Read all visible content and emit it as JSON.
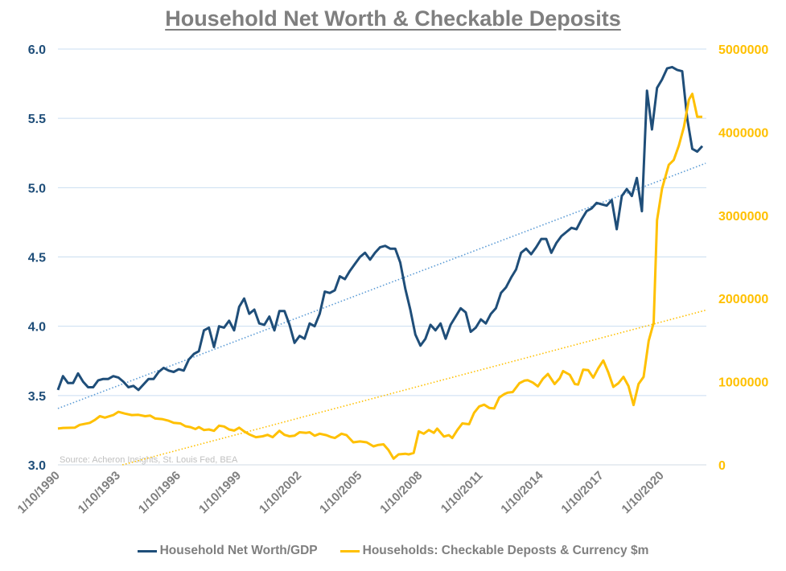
{
  "chart_data": {
    "type": "line",
    "title": "Household Net Worth & Checkable Deposits",
    "source_note": "Source: Acheron Insights, St. Louis Fed, BEA",
    "x_tick_labels": [
      "1/10/1990",
      "1/10/1993",
      "1/10/1996",
      "1/10/1999",
      "1/10/2002",
      "1/10/2005",
      "1/10/2008",
      "1/10/2011",
      "1/10/2014",
      "1/10/2017",
      "1/10/2020"
    ],
    "x_tick_dates": [
      "1990-10",
      "1993-10",
      "1996-10",
      "1999-10",
      "2002-10",
      "2005-10",
      "2008-10",
      "2011-10",
      "2014-10",
      "2017-10",
      "2020-10"
    ],
    "y_left": {
      "range": [
        3.0,
        6.0
      ],
      "ticks": [
        "3.0",
        "3.5",
        "4.0",
        "4.5",
        "5.0",
        "5.5",
        "6.0"
      ],
      "color": "#1f4e79"
    },
    "y_right": {
      "range": [
        0,
        5000000
      ],
      "ticks": [
        "0",
        "1000000",
        "2000000",
        "3000000",
        "4000000",
        "5000000"
      ],
      "color": "#ffc000"
    },
    "grid": true,
    "legend_position": "bottom",
    "series": [
      {
        "name": "Household Net Worth/GDP",
        "axis": "left",
        "color": "#1f4e79",
        "trendline": "linear",
        "trend_color": "#5b9bd5",
        "x": [
          "1990-10",
          "1991-01",
          "1991-04",
          "1991-07",
          "1991-10",
          "1992-01",
          "1992-04",
          "1992-07",
          "1992-10",
          "1993-01",
          "1993-04",
          "1993-07",
          "1993-10",
          "1994-01",
          "1994-04",
          "1994-07",
          "1994-10",
          "1995-01",
          "1995-04",
          "1995-07",
          "1995-10",
          "1996-01",
          "1996-04",
          "1996-07",
          "1996-10",
          "1997-01",
          "1997-04",
          "1997-07",
          "1997-10",
          "1998-01",
          "1998-04",
          "1998-07",
          "1998-10",
          "1999-01",
          "1999-04",
          "1999-07",
          "1999-10",
          "2000-01",
          "2000-04",
          "2000-07",
          "2000-10",
          "2001-01",
          "2001-04",
          "2001-07",
          "2001-10",
          "2002-01",
          "2002-04",
          "2002-07",
          "2002-10",
          "2003-01",
          "2003-04",
          "2003-07",
          "2003-10",
          "2004-01",
          "2004-04",
          "2004-07",
          "2004-10",
          "2005-01",
          "2005-04",
          "2005-07",
          "2005-10",
          "2006-01",
          "2006-04",
          "2006-07",
          "2006-10",
          "2007-01",
          "2007-04",
          "2007-07",
          "2007-10",
          "2008-01",
          "2008-04",
          "2008-07",
          "2008-10",
          "2009-01",
          "2009-04",
          "2009-07",
          "2009-10",
          "2010-01",
          "2010-04",
          "2010-07",
          "2010-10",
          "2011-01",
          "2011-04",
          "2011-07",
          "2011-10",
          "2012-01",
          "2012-04",
          "2012-07",
          "2012-10",
          "2013-01",
          "2013-04",
          "2013-07",
          "2013-10",
          "2014-01",
          "2014-04",
          "2014-07",
          "2014-10",
          "2015-01",
          "2015-04",
          "2015-07",
          "2015-10",
          "2016-01",
          "2016-04",
          "2016-07",
          "2016-10",
          "2017-01",
          "2017-04",
          "2017-07",
          "2017-10",
          "2018-01",
          "2018-04",
          "2018-07",
          "2018-10",
          "2019-01",
          "2019-04",
          "2019-07",
          "2019-10",
          "2020-01",
          "2020-04",
          "2020-07",
          "2020-10",
          "2021-01",
          "2021-04",
          "2021-07",
          "2021-10",
          "2022-01",
          "2022-04",
          "2022-07",
          "2022-10"
        ],
        "values": [
          3.54,
          3.64,
          3.59,
          3.59,
          3.66,
          3.6,
          3.56,
          3.56,
          3.61,
          3.62,
          3.62,
          3.64,
          3.63,
          3.6,
          3.56,
          3.57,
          3.54,
          3.58,
          3.62,
          3.62,
          3.67,
          3.7,
          3.68,
          3.67,
          3.69,
          3.68,
          3.76,
          3.8,
          3.82,
          3.97,
          3.99,
          3.85,
          4.0,
          3.99,
          4.04,
          3.97,
          4.14,
          4.2,
          4.09,
          4.12,
          4.02,
          4.01,
          4.07,
          3.97,
          4.11,
          4.11,
          4.01,
          3.88,
          3.93,
          3.91,
          4.02,
          4.0,
          4.09,
          4.25,
          4.24,
          4.26,
          4.36,
          4.34,
          4.4,
          4.45,
          4.5,
          4.53,
          4.48,
          4.53,
          4.57,
          4.58,
          4.56,
          4.56,
          4.46,
          4.27,
          4.12,
          3.94,
          3.86,
          3.91,
          4.01,
          3.97,
          4.02,
          3.91,
          4.01,
          4.07,
          4.13,
          4.1,
          3.96,
          3.99,
          4.05,
          4.02,
          4.09,
          4.13,
          4.24,
          4.28,
          4.35,
          4.41,
          4.53,
          4.56,
          4.52,
          4.57,
          4.63,
          4.63,
          4.53,
          4.6,
          4.65,
          4.68,
          4.71,
          4.7,
          4.77,
          4.83,
          4.85,
          4.89,
          4.88,
          4.87,
          4.91,
          4.7,
          4.94,
          4.99,
          4.94,
          5.07,
          4.83,
          5.7,
          5.42,
          5.72,
          5.78,
          5.86,
          5.87,
          5.85,
          5.84,
          5.5,
          5.28,
          5.26,
          5.3
        ]
      },
      {
        "name": "Households: Checkable Deposts & Currency $m",
        "axis": "right",
        "color": "#ffc000",
        "trendline": "linear",
        "trend_color": "#ffc000",
        "x": [
          "1990-10",
          "1991-01",
          "1991-08",
          "1991-11",
          "1992-05",
          "1992-08",
          "1992-11",
          "1993-02",
          "1993-07",
          "1993-10",
          "1994-02",
          "1994-06",
          "1994-10",
          "1995-02",
          "1995-05",
          "1995-08",
          "1995-12",
          "1996-04",
          "1996-07",
          "1996-11",
          "1997-02",
          "1997-05",
          "1997-08",
          "1997-10",
          "1998-01",
          "1998-04",
          "1998-07",
          "1998-10",
          "1999-01",
          "1999-04",
          "1999-07",
          "1999-10",
          "2000-01",
          "2000-04",
          "2000-08",
          "2000-12",
          "2001-03",
          "2001-06",
          "2001-10",
          "2002-01",
          "2002-04",
          "2002-07",
          "2002-10",
          "2003-02",
          "2003-04",
          "2003-07",
          "2003-10",
          "2004-02",
          "2004-05",
          "2004-07",
          "2004-11",
          "2005-02",
          "2005-06",
          "2005-10",
          "2006-02",
          "2006-06",
          "2006-09",
          "2006-12",
          "2007-03",
          "2007-06",
          "2007-09",
          "2008-01",
          "2008-03",
          "2008-06",
          "2008-09",
          "2008-12",
          "2009-03",
          "2009-06",
          "2009-08",
          "2009-12",
          "2010-03",
          "2010-05",
          "2010-08",
          "2010-11",
          "2011-03",
          "2011-06",
          "2011-09",
          "2011-12",
          "2012-03",
          "2012-06",
          "2012-09",
          "2012-12",
          "2013-02",
          "2013-05",
          "2013-09",
          "2013-12",
          "2014-02",
          "2014-05",
          "2014-08",
          "2014-11",
          "2015-02",
          "2015-06",
          "2015-09",
          "2015-11",
          "2016-03",
          "2016-06",
          "2016-08",
          "2016-11",
          "2017-02",
          "2017-05",
          "2017-08",
          "2017-11",
          "2018-02",
          "2018-05",
          "2018-08",
          "2018-11",
          "2019-02",
          "2019-05",
          "2019-08",
          "2019-11",
          "2020-02",
          "2020-05",
          "2020-07",
          "2020-10",
          "2021-02",
          "2021-05",
          "2021-08",
          "2021-11",
          "2022-02",
          "2022-04",
          "2022-07",
          "2022-10"
        ],
        "values": [
          436000,
          444000,
          447000,
          481000,
          505000,
          540000,
          585000,
          568000,
          599000,
          637000,
          616000,
          599000,
          602000,
          585000,
          592000,
          557000,
          550000,
          530000,
          505000,
          498000,
          464000,
          454000,
          430000,
          454000,
          419000,
          426000,
          409000,
          471000,
          461000,
          426000,
          412000,
          447000,
          402000,
          367000,
          333000,
          343000,
          361000,
          333000,
          409000,
          361000,
          343000,
          350000,
          392000,
          385000,
          392000,
          350000,
          374000,
          357000,
          333000,
          323000,
          374000,
          357000,
          271000,
          281000,
          271000,
          222000,
          240000,
          247000,
          178000,
          74000,
          126000,
          133000,
          126000,
          143000,
          402000,
          374000,
          419000,
          385000,
          436000,
          340000,
          357000,
          323000,
          419000,
          498000,
          488000,
          626000,
          702000,
          723000,
          685000,
          678000,
          810000,
          851000,
          868000,
          875000,
          982000,
          1013000,
          1017000,
          989000,
          944000,
          1034000,
          1093000,
          972000,
          1041000,
          1128000,
          1083000,
          972000,
          965000,
          1145000,
          1138000,
          1048000,
          1162000,
          1255000,
          1110000,
          937000,
          982000,
          1058000,
          948000,
          720000,
          972000,
          1058000,
          1490000,
          1708000,
          2941000,
          3321000,
          3608000,
          3666000,
          3839000,
          4064000,
          4392000,
          4461000,
          4185000,
          4185000
        ]
      }
    ]
  }
}
